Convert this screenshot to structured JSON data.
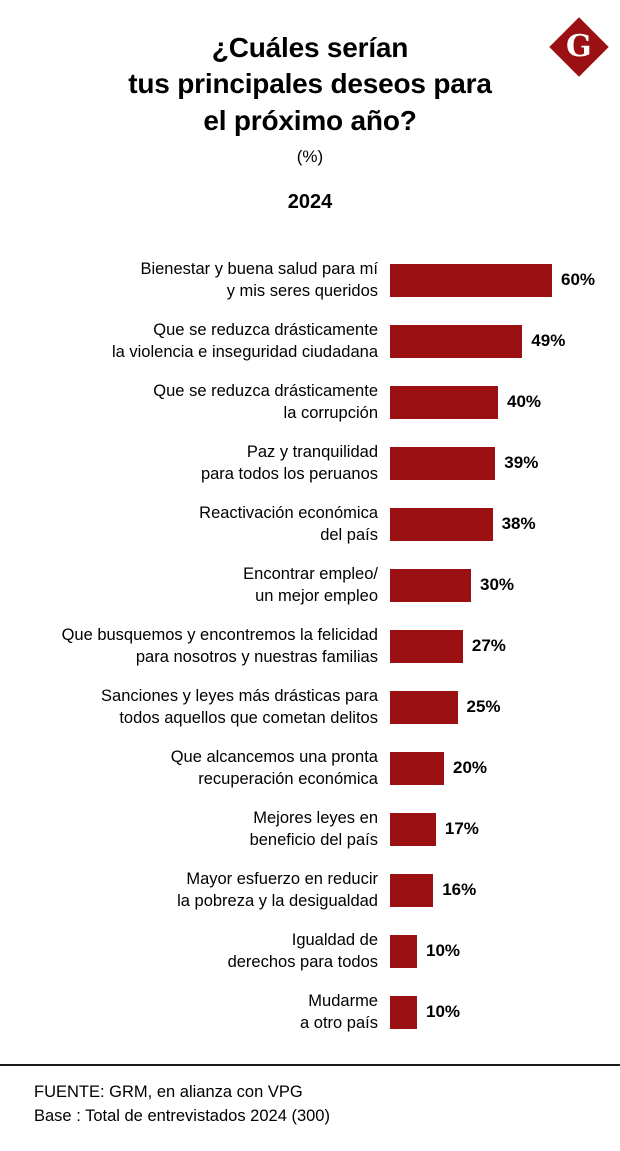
{
  "logo": {
    "letter": "G",
    "color": "#9a1013"
  },
  "header": {
    "title_lines": [
      "¿Cuáles serían",
      "tus principales deseos para",
      "el próximo año?"
    ],
    "unit": "(%)",
    "year": "2024"
  },
  "chart_data": {
    "type": "bar",
    "orientation": "horizontal",
    "title": "¿Cuáles serían tus principales deseos para el próximo año? (%) 2024",
    "bar_color": "#9a1013",
    "value_suffix": "%",
    "xlim": [
      0,
      62
    ],
    "categories": [
      [
        "Bienestar y buena salud para mí",
        "y mis seres queridos"
      ],
      [
        "Que se reduzca drásticamente",
        "la violencia e inseguridad ciudadana"
      ],
      [
        "Que se reduzca drásticamente",
        "la corrupción"
      ],
      [
        "Paz y tranquilidad",
        "para todos los peruanos"
      ],
      [
        "Reactivación económica",
        "del país"
      ],
      [
        "Encontrar empleo/",
        "un mejor empleo"
      ],
      [
        "Que busquemos y encontremos la felicidad",
        "para nosotros y nuestras familias"
      ],
      [
        "Sanciones y leyes más drásticas para",
        "todos aquellos que cometan delitos"
      ],
      [
        "Que alcancemos una pronta",
        "recuperación económica"
      ],
      [
        "Mejores leyes en",
        "beneficio del país"
      ],
      [
        "Mayor esfuerzo en reducir",
        "la pobreza y la desigualdad"
      ],
      [
        "Igualdad de",
        "derechos para todos"
      ],
      [
        "Mudarme",
        "a otro país"
      ]
    ],
    "values": [
      60,
      49,
      40,
      39,
      38,
      30,
      27,
      25,
      20,
      17,
      16,
      10,
      10
    ]
  },
  "footer": {
    "source": "FUENTE: GRM, en alianza con VPG",
    "base": "Base : Total de entrevistados 2024 (300)"
  }
}
